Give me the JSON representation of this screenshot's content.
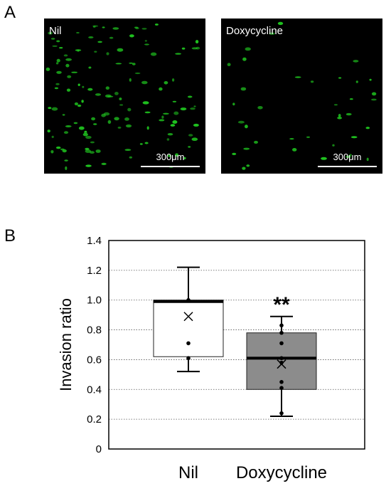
{
  "panel_a": {
    "letter": "A",
    "images": [
      {
        "label": "Nil",
        "scale_label": "300μm",
        "cell_color": "#1fc41f"
      },
      {
        "label": "Doxycycline",
        "scale_label": "300μm",
        "cell_color": "#1fc41f"
      }
    ]
  },
  "panel_b": {
    "letter": "B"
  },
  "chart_data": {
    "type": "box",
    "title": "",
    "xlabel": "",
    "ylabel": "Invasion ratio",
    "ylim": [
      0,
      1.4
    ],
    "yticks": [
      "0",
      "0.2",
      "0.4",
      "0.6",
      "0.8",
      "1.0",
      "1.2",
      "1.4"
    ],
    "grid": "horizontal dotted",
    "legend": "none",
    "categories": [
      "Nil",
      "Doxycycline"
    ],
    "boxes": [
      {
        "category": "Nil",
        "whisker_low": 0.52,
        "q1": 0.62,
        "median": 0.99,
        "q3": 1.0,
        "whisker_high": 1.22,
        "mean": 0.89,
        "points": [
          1.0,
          0.71,
          0.61
        ],
        "fill": "#ffffff"
      },
      {
        "category": "Doxycycline",
        "whisker_low": 0.22,
        "q1": 0.4,
        "median": 0.61,
        "q3": 0.78,
        "whisker_high": 0.89,
        "mean": 0.57,
        "points": [
          0.83,
          0.78,
          0.71,
          0.61,
          0.58,
          0.45,
          0.41,
          0.24
        ],
        "fill": "#8c8c8c"
      }
    ],
    "annotations": [
      {
        "category": "Doxycycline",
        "text": "**",
        "y": 0.99
      }
    ]
  }
}
